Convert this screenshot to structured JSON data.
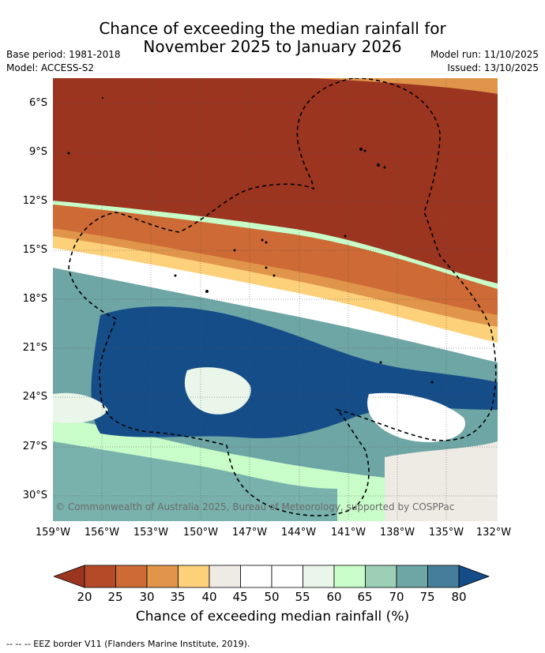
{
  "header": {
    "title_line1": "Chance of exceeding the median rainfall for",
    "title_line2": "November 2025 to January 2026",
    "base_period": "Base period: 1981-2018",
    "model": "Model: ACCESS-S2",
    "model_run": "Model run: 11/10/2025",
    "issued": "Issued: 13/10/2025"
  },
  "axes": {
    "lat_labels": [
      "6°S",
      "9°S",
      "12°S",
      "15°S",
      "18°S",
      "21°S",
      "24°S",
      "27°S",
      "30°S"
    ],
    "lon_labels": [
      "159°W",
      "156°W",
      "153°W",
      "150°W",
      "147°W",
      "144°W",
      "141°W",
      "138°W",
      "135°W",
      "132°W"
    ]
  },
  "map": {
    "copyright": "© Commonwealth of Australia 2025, Bureau of Meteorology, supported by COSPPac"
  },
  "colorbar": {
    "ticks": [
      "20",
      "25",
      "30",
      "35",
      "40",
      "45",
      "50",
      "55",
      "60",
      "65",
      "70",
      "75",
      "80"
    ],
    "colors": [
      "#9b3520",
      "#b54a28",
      "#cd6a35",
      "#e0954a",
      "#fdd07a",
      "#eeeae4",
      "#ffffff",
      "#ffffff",
      "#e9f6e9",
      "#c8fcc8",
      "#9dcfb7",
      "#6ea5a5",
      "#447e9a",
      "#154d88"
    ],
    "title": "Chance of exceeding median rainfall (%)"
  },
  "footnote": "--  --  -- EEZ border V11 (Flanders Marine Institute, 2019)."
}
